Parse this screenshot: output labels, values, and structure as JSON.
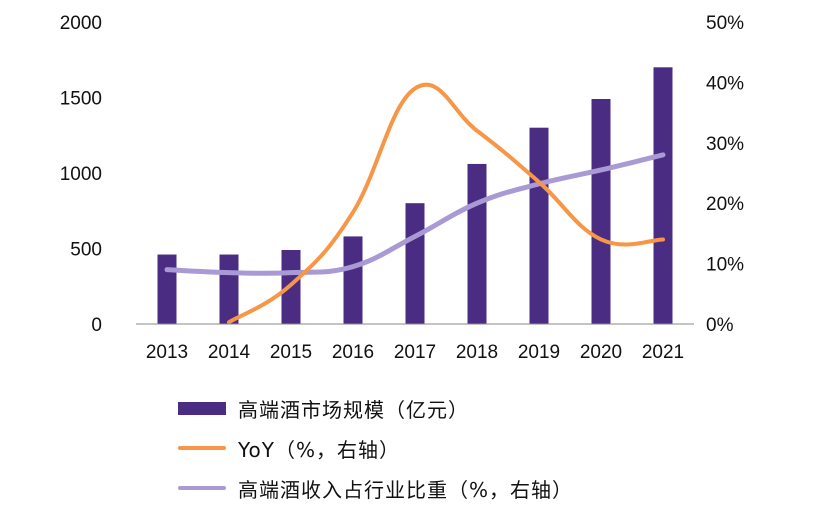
{
  "chart_data": {
    "type": "bar",
    "categories": [
      "2013",
      "2014",
      "2015",
      "2016",
      "2017",
      "2018",
      "2019",
      "2020",
      "2021"
    ],
    "series": [
      {
        "name": "高端酒市场规模（亿元）",
        "type": "bar",
        "axis": "left",
        "color": "#4b2c83",
        "values": [
          460,
          460,
          490,
          580,
          800,
          1060,
          1300,
          1490,
          1700
        ]
      },
      {
        "name": "YoY（%，右轴）",
        "type": "line",
        "axis": "right",
        "color": "#f79646",
        "values": [
          null,
          0.3,
          6.5,
          18.5,
          39.0,
          32.0,
          23.5,
          14.0,
          14.0
        ]
      },
      {
        "name": "高端酒收入占行业比重（%，右轴）",
        "type": "line",
        "axis": "right",
        "color": "#a99ad6",
        "values": [
          9.0,
          8.5,
          8.5,
          9.5,
          14.5,
          20.0,
          23.2,
          25.5,
          28.0
        ]
      }
    ],
    "y_left": {
      "lim": [
        0,
        2000
      ],
      "ticks": [
        "0",
        "500",
        "1000",
        "1500",
        "2000"
      ]
    },
    "y_right": {
      "lim": [
        0,
        50
      ],
      "ticks": [
        "0%",
        "10%",
        "20%",
        "30%",
        "40%",
        "50%"
      ]
    },
    "legend_position": "bottom",
    "grid": false
  },
  "legend": [
    {
      "label": "高端酒市场规模（亿元）",
      "color": "#4b2c83",
      "kind": "bar"
    },
    {
      "label": "YoY（%，右轴）",
      "color": "#f79646",
      "kind": "line"
    },
    {
      "label": "高端酒收入占行业比重（%，右轴）",
      "color": "#a99ad6",
      "kind": "line"
    }
  ]
}
